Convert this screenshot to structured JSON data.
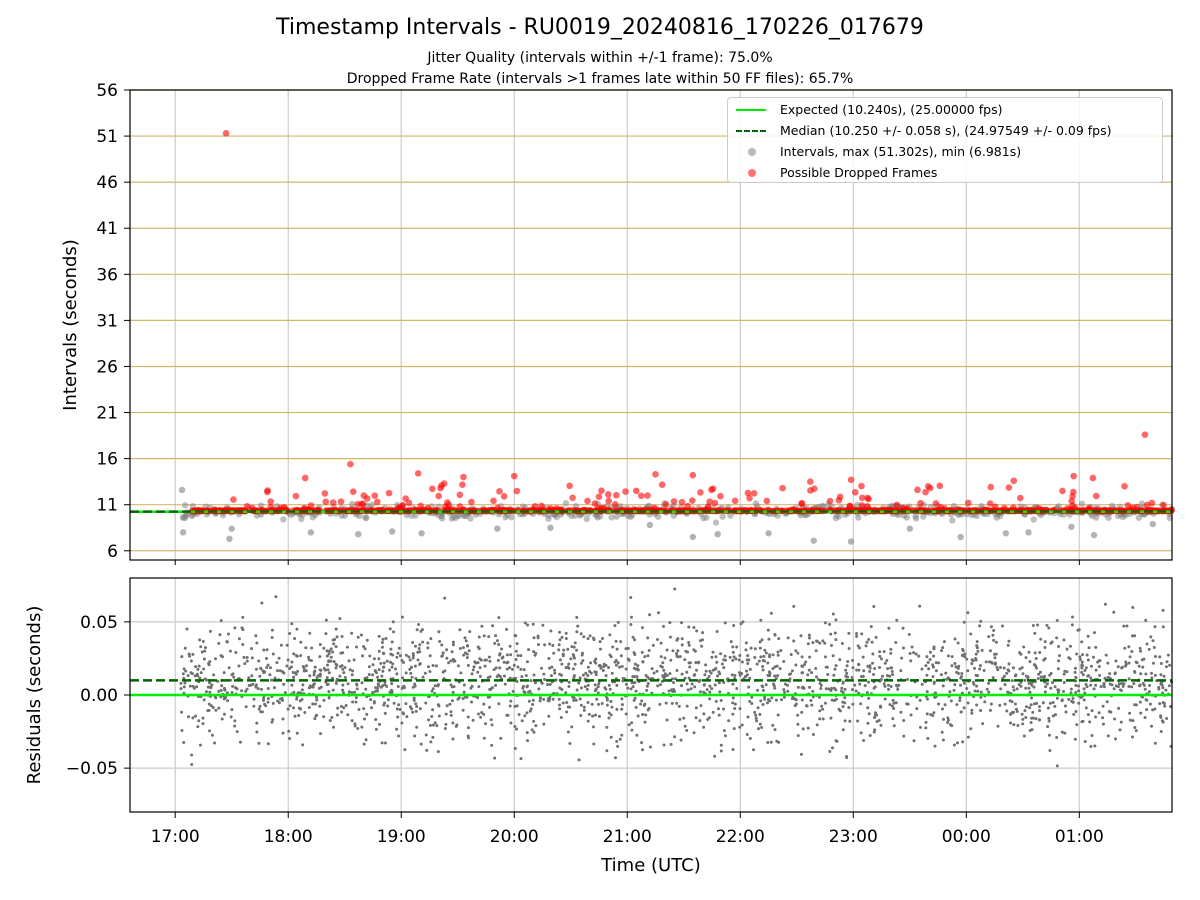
{
  "chart_data": [
    {
      "type": "scatter",
      "title": "Timestamp Intervals - RU0019_20240816_170226_017679",
      "subtitle_1": "Jitter Quality (intervals within +/-1 frame): 75.0%",
      "subtitle_2": "Dropped Frame Rate (intervals >1 frames late within 50 FF files): 65.7%",
      "xlabel": "Time (UTC)",
      "ylabel": "Intervals (seconds)",
      "ylim": [
        5,
        56
      ],
      "y_ticks": [
        6,
        11,
        16,
        21,
        26,
        31,
        36,
        41,
        46,
        51,
        56
      ],
      "x_ticks": [
        "17:00",
        "18:00",
        "19:00",
        "20:00",
        "21:00",
        "22:00",
        "23:00",
        "00:00",
        "01:00"
      ],
      "x_range_hours": [
        16.6,
        25.82
      ],
      "grid": true,
      "legend_position": "top-right",
      "legend": [
        "Expected (10.240s), (25.00000 fps)",
        "Median (10.250 +/- 0.058 s), (24.97549 +/- 0.09 fps)",
        "Intervals, max (51.302s), min (6.981s)",
        "Possible Dropped Frames"
      ],
      "expected_interval": 10.24,
      "median_interval": 10.25,
      "max_interval": 51.302,
      "min_interval": 6.981,
      "series": [
        {
          "name": "Possible Dropped Frames",
          "points": [
            [
              17.45,
              51.3
            ],
            [
              25.58,
              18.6
            ],
            [
              18.55,
              15.4
            ],
            [
              19.15,
              14.4
            ],
            [
              19.55,
              14.0
            ],
            [
              20.0,
              14.1
            ],
            [
              21.25,
              14.3
            ],
            [
              21.58,
              14.2
            ],
            [
              22.62,
              13.5
            ],
            [
              22.98,
              13.7
            ],
            [
              24.42,
              13.6
            ],
            [
              24.95,
              14.1
            ],
            [
              25.12,
              13.9
            ],
            [
              18.15,
              13.9
            ],
            [
              19.38,
              13.3
            ],
            [
              23.68,
              12.8
            ],
            [
              21.08,
              12.5
            ],
            [
              25.4,
              13.0
            ]
          ]
        },
        {
          "name": "Intervals",
          "points": [
            [
              17.06,
              12.6
            ],
            [
              17.07,
              8.0
            ],
            [
              17.48,
              7.3
            ],
            [
              17.5,
              8.4
            ],
            [
              18.2,
              8.0
            ],
            [
              18.62,
              7.8
            ],
            [
              18.92,
              8.1
            ],
            [
              19.18,
              7.9
            ],
            [
              19.85,
              8.4
            ],
            [
              20.32,
              8.5
            ],
            [
              21.2,
              8.8
            ],
            [
              21.58,
              7.5
            ],
            [
              21.8,
              7.8
            ],
            [
              22.25,
              7.9
            ],
            [
              22.65,
              7.1
            ],
            [
              22.98,
              7.0
            ],
            [
              23.5,
              8.4
            ],
            [
              23.95,
              7.5
            ],
            [
              24.35,
              7.9
            ],
            [
              24.55,
              8.0
            ],
            [
              24.93,
              8.6
            ],
            [
              25.13,
              7.7
            ],
            [
              25.65,
              8.9
            ]
          ]
        },
        {
          "name": "Expected (10.240s), (25.00000 fps)",
          "values": [
            10.24
          ]
        },
        {
          "name": "Median (10.250 +/- 0.058 s), (24.97549 +/- 0.09 fps)",
          "values": [
            10.25
          ]
        }
      ]
    },
    {
      "type": "scatter",
      "xlabel": "Time (UTC)",
      "ylabel": "Residuals (seconds)",
      "ylim": [
        -0.08,
        0.08
      ],
      "y_ticks": [
        "−0.05",
        "0.00",
        "0.05"
      ],
      "y_tick_values": [
        -0.05,
        0.0,
        0.05
      ],
      "x_range_hours": [
        16.6,
        25.82
      ],
      "grid": true,
      "expected_residual": 0.0,
      "median_residual": 0.01
    }
  ],
  "colors": {
    "expected": "#00ee00",
    "median": "#006400",
    "intervals": "#808080",
    "dropped": "#ff0000",
    "upper_grid": "#d2b96a",
    "grid": "#cccccc"
  }
}
